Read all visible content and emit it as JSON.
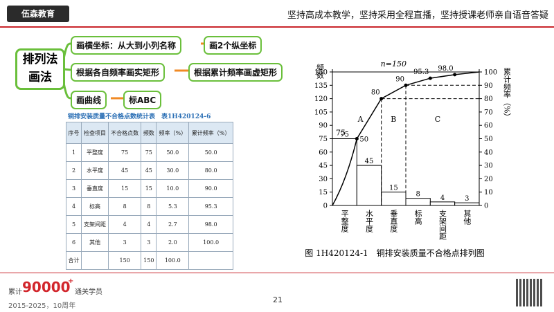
{
  "header": {
    "logo": "伍森教育",
    "slogan": "坚持高成本教学，坚持采用全程直播，坚持授课老师亲自语音答疑"
  },
  "mindmap": {
    "center": "排列法画法",
    "nodes": [
      "画横坐标：从大到小列名称",
      "画2个纵坐标",
      "根据各自频率画实矩形",
      "根据累计频率画虚矩形",
      "画曲线",
      "标ABC"
    ]
  },
  "table": {
    "title": "铜排安装质量不合格点数统计表　表1H420124-6",
    "columns": [
      "序号",
      "检查项目",
      "不合格点数",
      "频数",
      "频率（%）",
      "累计频率（%）"
    ],
    "rows": [
      [
        "1",
        "平整度",
        "75",
        "75",
        "50.0",
        "50.0"
      ],
      [
        "2",
        "水平度",
        "45",
        "45",
        "30.0",
        "80.0"
      ],
      [
        "3",
        "垂直度",
        "15",
        "15",
        "10.0",
        "90.0"
      ],
      [
        "4",
        "标高",
        "8",
        "8",
        "5.3",
        "95.3"
      ],
      [
        "5",
        "支架间距",
        "4",
        "4",
        "2.7",
        "98.0"
      ],
      [
        "6",
        "其他",
        "3",
        "3",
        "2.0",
        "100.0"
      ],
      [
        "合计",
        null,
        "150",
        "150",
        "100.0",
        null
      ]
    ]
  },
  "chart_data": {
    "type": "pareto",
    "caption": "图 1H420124-1　铜排安装质量不合格点排列图",
    "ylabel": "频数",
    "y2label": "累计频率（%）",
    "annotations": [
      "n=150",
      "75",
      "A",
      "B",
      "C"
    ],
    "categories": [
      "平整度",
      "水平度",
      "垂直度",
      "标高",
      "支架间距",
      "其他"
    ],
    "values": [
      75,
      45,
      15,
      8,
      4,
      3
    ],
    "color": "#ffffff",
    "cumulative": {
      "values": [
        50,
        80,
        90,
        95.3,
        98.0,
        100
      ],
      "value_labels": [
        "50",
        "80",
        "90",
        "95.3",
        "98.0",
        null
      ],
      "axis": "y2",
      "color": "#000000"
    },
    "ylim": [
      0,
      150
    ],
    "yticks": [
      0,
      15,
      30,
      45,
      60,
      75,
      90,
      105,
      120,
      135,
      150
    ],
    "y2lim": [
      0,
      100
    ],
    "y2ticks": [
      0,
      10,
      20,
      30,
      40,
      50,
      60,
      70,
      80,
      90,
      100
    ]
  },
  "footer": {
    "prefix": "累计",
    "count": "90000",
    "plus": "+",
    "suffix": "通关学员",
    "years": "2015-2025，10周年",
    "page": "21"
  }
}
